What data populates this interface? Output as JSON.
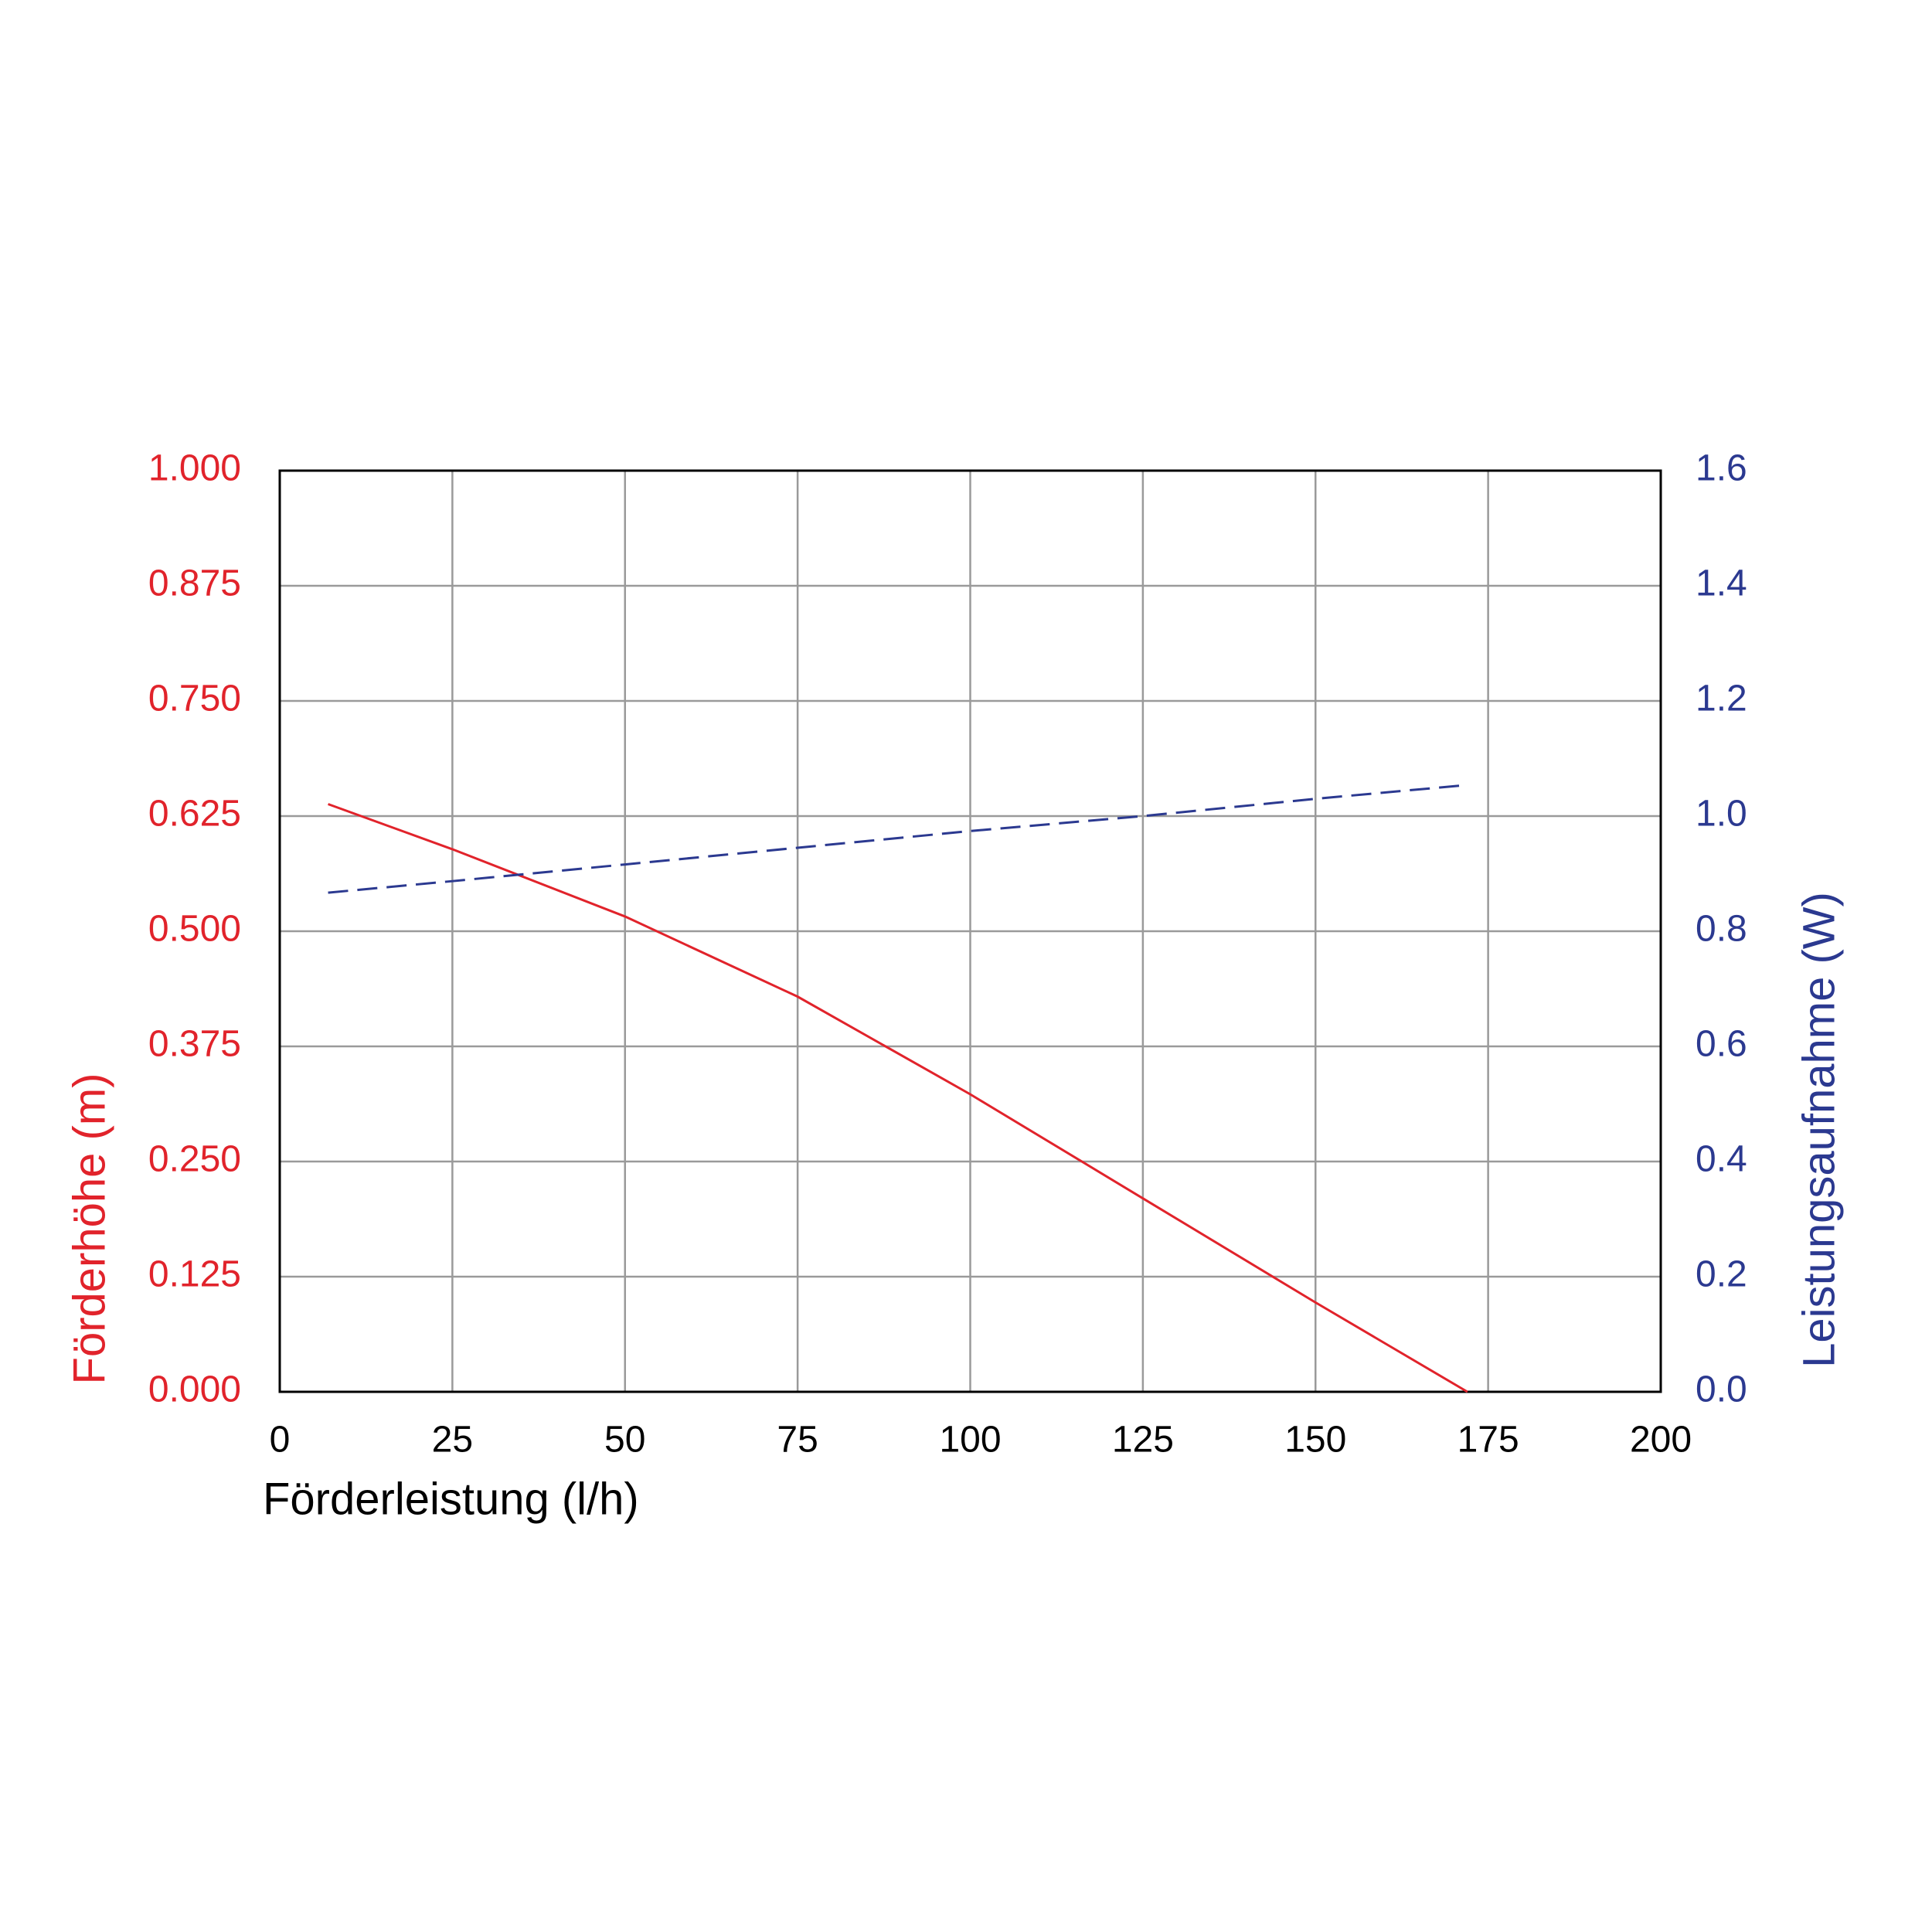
{
  "chart_data": {
    "type": "line",
    "x_label": "Förderleistung (l/h)",
    "y_label": "Förderhöhe (m)",
    "y2_label": "Leistungsaufnahme (W)",
    "x": [
      7,
      25,
      50,
      75,
      100,
      125,
      150,
      172
    ],
    "series": [
      {
        "name": "Förderhöhe",
        "color": "#e1232b",
        "dash": false,
        "axis": "y",
        "values": [
          0.638,
          0.589,
          0.516,
          0.429,
          0.323,
          0.21,
          0.097,
          0
        ]
      },
      {
        "name": "Leistungsaufnahme",
        "color": "#2b3990",
        "dash": true,
        "axis": "y2",
        "values": [
          0.867,
          0.887,
          0.916,
          0.945,
          0.974,
          1.0,
          1.03,
          1.054
        ]
      }
    ],
    "xlim": [
      0,
      200
    ],
    "xticks": [
      0,
      25,
      50,
      75,
      100,
      125,
      150,
      175,
      200
    ],
    "ylim": [
      0,
      1
    ],
    "yticks": [
      {
        "value": 0,
        "label": "0.000"
      },
      0.125,
      {
        "value": 0.25,
        "label": "0.250"
      },
      0.375,
      {
        "value": 0.5,
        "label": "0.500"
      },
      0.625,
      {
        "value": 0.75,
        "label": "0.750"
      },
      0.875,
      {
        "value": 1,
        "label": "1.000"
      }
    ],
    "y2lim": [
      0,
      1.6
    ],
    "y2ticks": [
      {
        "value": 0,
        "label": "0.0"
      },
      0.2,
      0.4,
      0.6,
      0.8,
      {
        "value": 1,
        "label": "1.0"
      },
      1.2,
      1.4,
      1.6
    ],
    "grid": true
  }
}
